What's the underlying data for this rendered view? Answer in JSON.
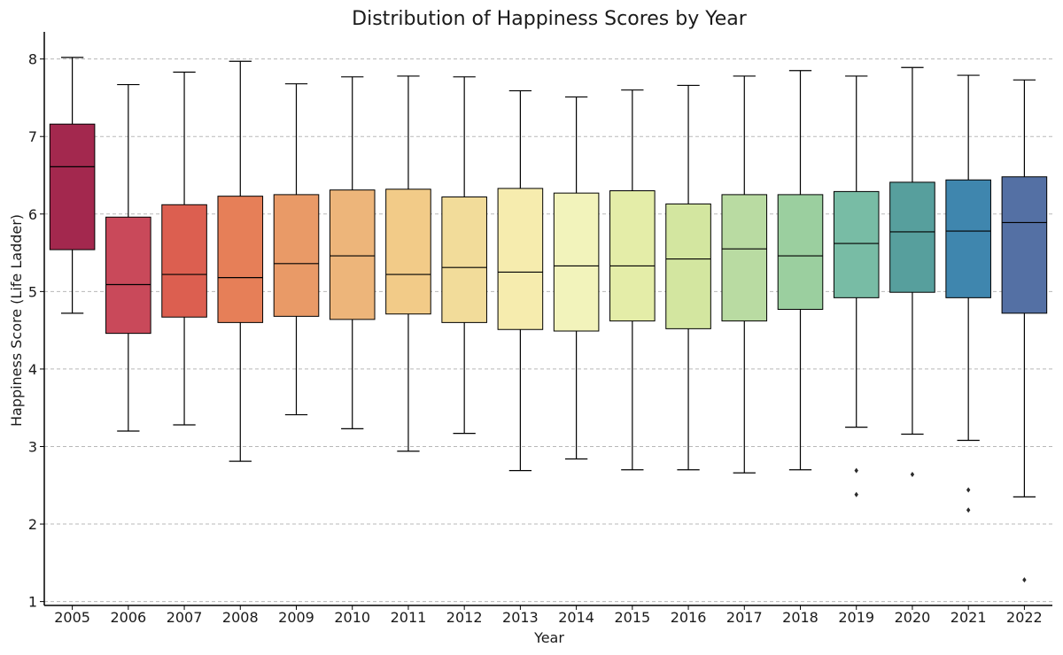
{
  "chart_data": {
    "type": "box",
    "title": "Distribution of Happiness Scores by Year",
    "xlabel": "Year",
    "ylabel": "Happiness Score (Life Ladder)",
    "ylim": [
      0.95,
      8.35
    ],
    "yticks": [
      1,
      2,
      3,
      4,
      5,
      6,
      7,
      8
    ],
    "grid": "horizontal dashed",
    "legend": "none",
    "categories": [
      "2005",
      "2006",
      "2007",
      "2008",
      "2009",
      "2010",
      "2011",
      "2012",
      "2013",
      "2014",
      "2015",
      "2016",
      "2017",
      "2018",
      "2019",
      "2020",
      "2021",
      "2022"
    ],
    "boxes": [
      {
        "year": "2005",
        "whisker_low": 4.72,
        "q1": 5.54,
        "median": 6.61,
        "q3": 7.16,
        "whisker_high": 8.02,
        "outliers": [],
        "color": "#a3284e"
      },
      {
        "year": "2006",
        "whisker_low": 3.2,
        "q1": 4.46,
        "median": 5.09,
        "q3": 5.96,
        "whisker_high": 7.67,
        "outliers": [],
        "color": "#c9495a"
      },
      {
        "year": "2007",
        "whisker_low": 3.28,
        "q1": 4.67,
        "median": 5.22,
        "q3": 6.12,
        "whisker_high": 7.83,
        "outliers": [],
        "color": "#dc5f50"
      },
      {
        "year": "2008",
        "whisker_low": 2.81,
        "q1": 4.6,
        "median": 5.18,
        "q3": 6.23,
        "whisker_high": 7.97,
        "outliers": [],
        "color": "#e67f58"
      },
      {
        "year": "2009",
        "whisker_low": 3.41,
        "q1": 4.68,
        "median": 5.36,
        "q3": 6.25,
        "whisker_high": 7.68,
        "outliers": [],
        "color": "#e99a67"
      },
      {
        "year": "2010",
        "whisker_low": 3.23,
        "q1": 4.64,
        "median": 5.46,
        "q3": 6.31,
        "whisker_high": 7.77,
        "outliers": [],
        "color": "#edb57a"
      },
      {
        "year": "2011",
        "whisker_low": 2.94,
        "q1": 4.71,
        "median": 5.22,
        "q3": 6.32,
        "whisker_high": 7.78,
        "outliers": [],
        "color": "#f2cb88"
      },
      {
        "year": "2012",
        "whisker_low": 3.17,
        "q1": 4.6,
        "median": 5.31,
        "q3": 6.22,
        "whisker_high": 7.77,
        "outliers": [],
        "color": "#f2dc9a"
      },
      {
        "year": "2013",
        "whisker_low": 2.69,
        "q1": 4.51,
        "median": 5.25,
        "q3": 6.33,
        "whisker_high": 7.59,
        "outliers": [],
        "color": "#f6ecae"
      },
      {
        "year": "2014",
        "whisker_low": 2.84,
        "q1": 4.49,
        "median": 5.33,
        "q3": 6.27,
        "whisker_high": 7.51,
        "outliers": [],
        "color": "#f2f3bb"
      },
      {
        "year": "2015",
        "whisker_low": 2.7,
        "q1": 4.62,
        "median": 5.33,
        "q3": 6.3,
        "whisker_high": 7.6,
        "outliers": [],
        "color": "#e4eda8"
      },
      {
        "year": "2016",
        "whisker_low": 2.7,
        "q1": 4.52,
        "median": 5.42,
        "q3": 6.13,
        "whisker_high": 7.66,
        "outliers": [],
        "color": "#d3e6a0"
      },
      {
        "year": "2017",
        "whisker_low": 2.66,
        "q1": 4.62,
        "median": 5.55,
        "q3": 6.25,
        "whisker_high": 7.78,
        "outliers": [],
        "color": "#b9dba2"
      },
      {
        "year": "2018",
        "whisker_low": 2.7,
        "q1": 4.77,
        "median": 5.46,
        "q3": 6.25,
        "whisker_high": 7.85,
        "outliers": [],
        "color": "#9bcf9f"
      },
      {
        "year": "2019",
        "whisker_low": 3.25,
        "q1": 4.92,
        "median": 5.62,
        "q3": 6.29,
        "whisker_high": 7.78,
        "outliers": [
          2.69,
          2.38
        ],
        "color": "#78bca5"
      },
      {
        "year": "2020",
        "whisker_low": 3.16,
        "q1": 4.99,
        "median": 5.77,
        "q3": 6.41,
        "whisker_high": 7.89,
        "outliers": [
          2.64
        ],
        "color": "#579f9d"
      },
      {
        "year": "2021",
        "whisker_low": 3.08,
        "q1": 4.92,
        "median": 5.78,
        "q3": 6.44,
        "whisker_high": 7.79,
        "outliers": [
          2.44,
          2.18
        ],
        "color": "#3f86ae"
      },
      {
        "year": "2022",
        "whisker_low": 2.35,
        "q1": 4.72,
        "median": 5.89,
        "q3": 6.48,
        "whisker_high": 7.73,
        "outliers": [
          1.28
        ],
        "color": "#5470a4"
      }
    ]
  }
}
